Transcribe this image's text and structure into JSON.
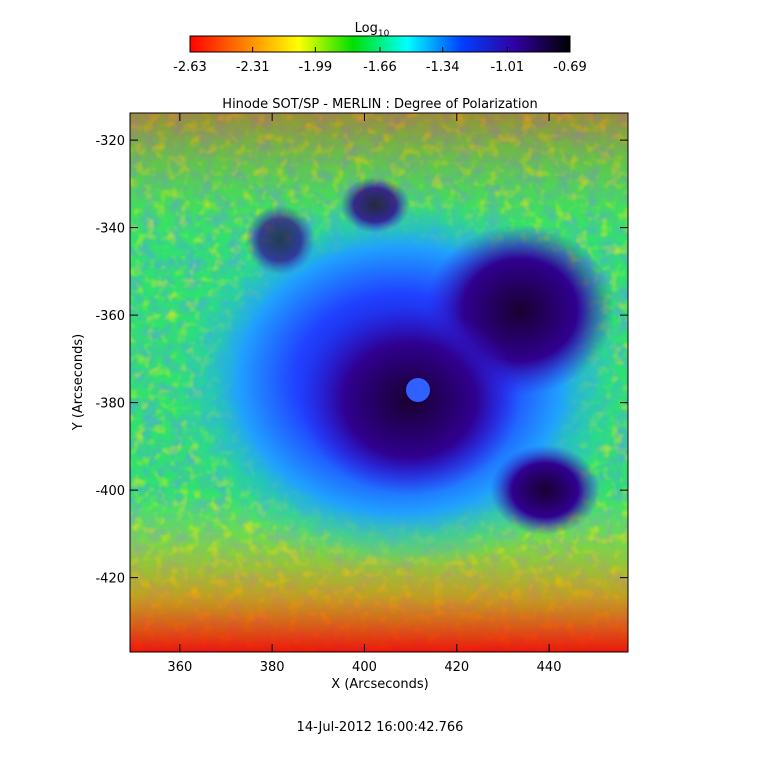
{
  "chart_data": {
    "type": "image",
    "title": "Hinode SOT/SP - MERLIN : Degree of Polarization",
    "xlabel": "X (Arcseconds)",
    "ylabel": "Y (Arcseconds)",
    "xlim": [
      349.2,
      457.1
    ],
    "ylim": [
      -437.0,
      -313.8
    ],
    "xticks": [
      360,
      380,
      400,
      420,
      440
    ],
    "yticks": [
      -420,
      -400,
      -380,
      -360,
      -340,
      -320
    ],
    "colorbar": {
      "label": "Log",
      "label_subscript": "10",
      "lim": [
        -2.63,
        -0.69
      ],
      "ticks": [
        -2.63,
        -2.31,
        -1.99,
        -1.66,
        -1.34,
        -1.01,
        -0.69
      ],
      "colors": [
        "#ff0000",
        "#ff8000",
        "#ffff00",
        "#00e000",
        "#00ffff",
        "#0040ff",
        "#3000a0",
        "#000000"
      ]
    },
    "date": "14-Jul-2012 16:00:42.766"
  }
}
